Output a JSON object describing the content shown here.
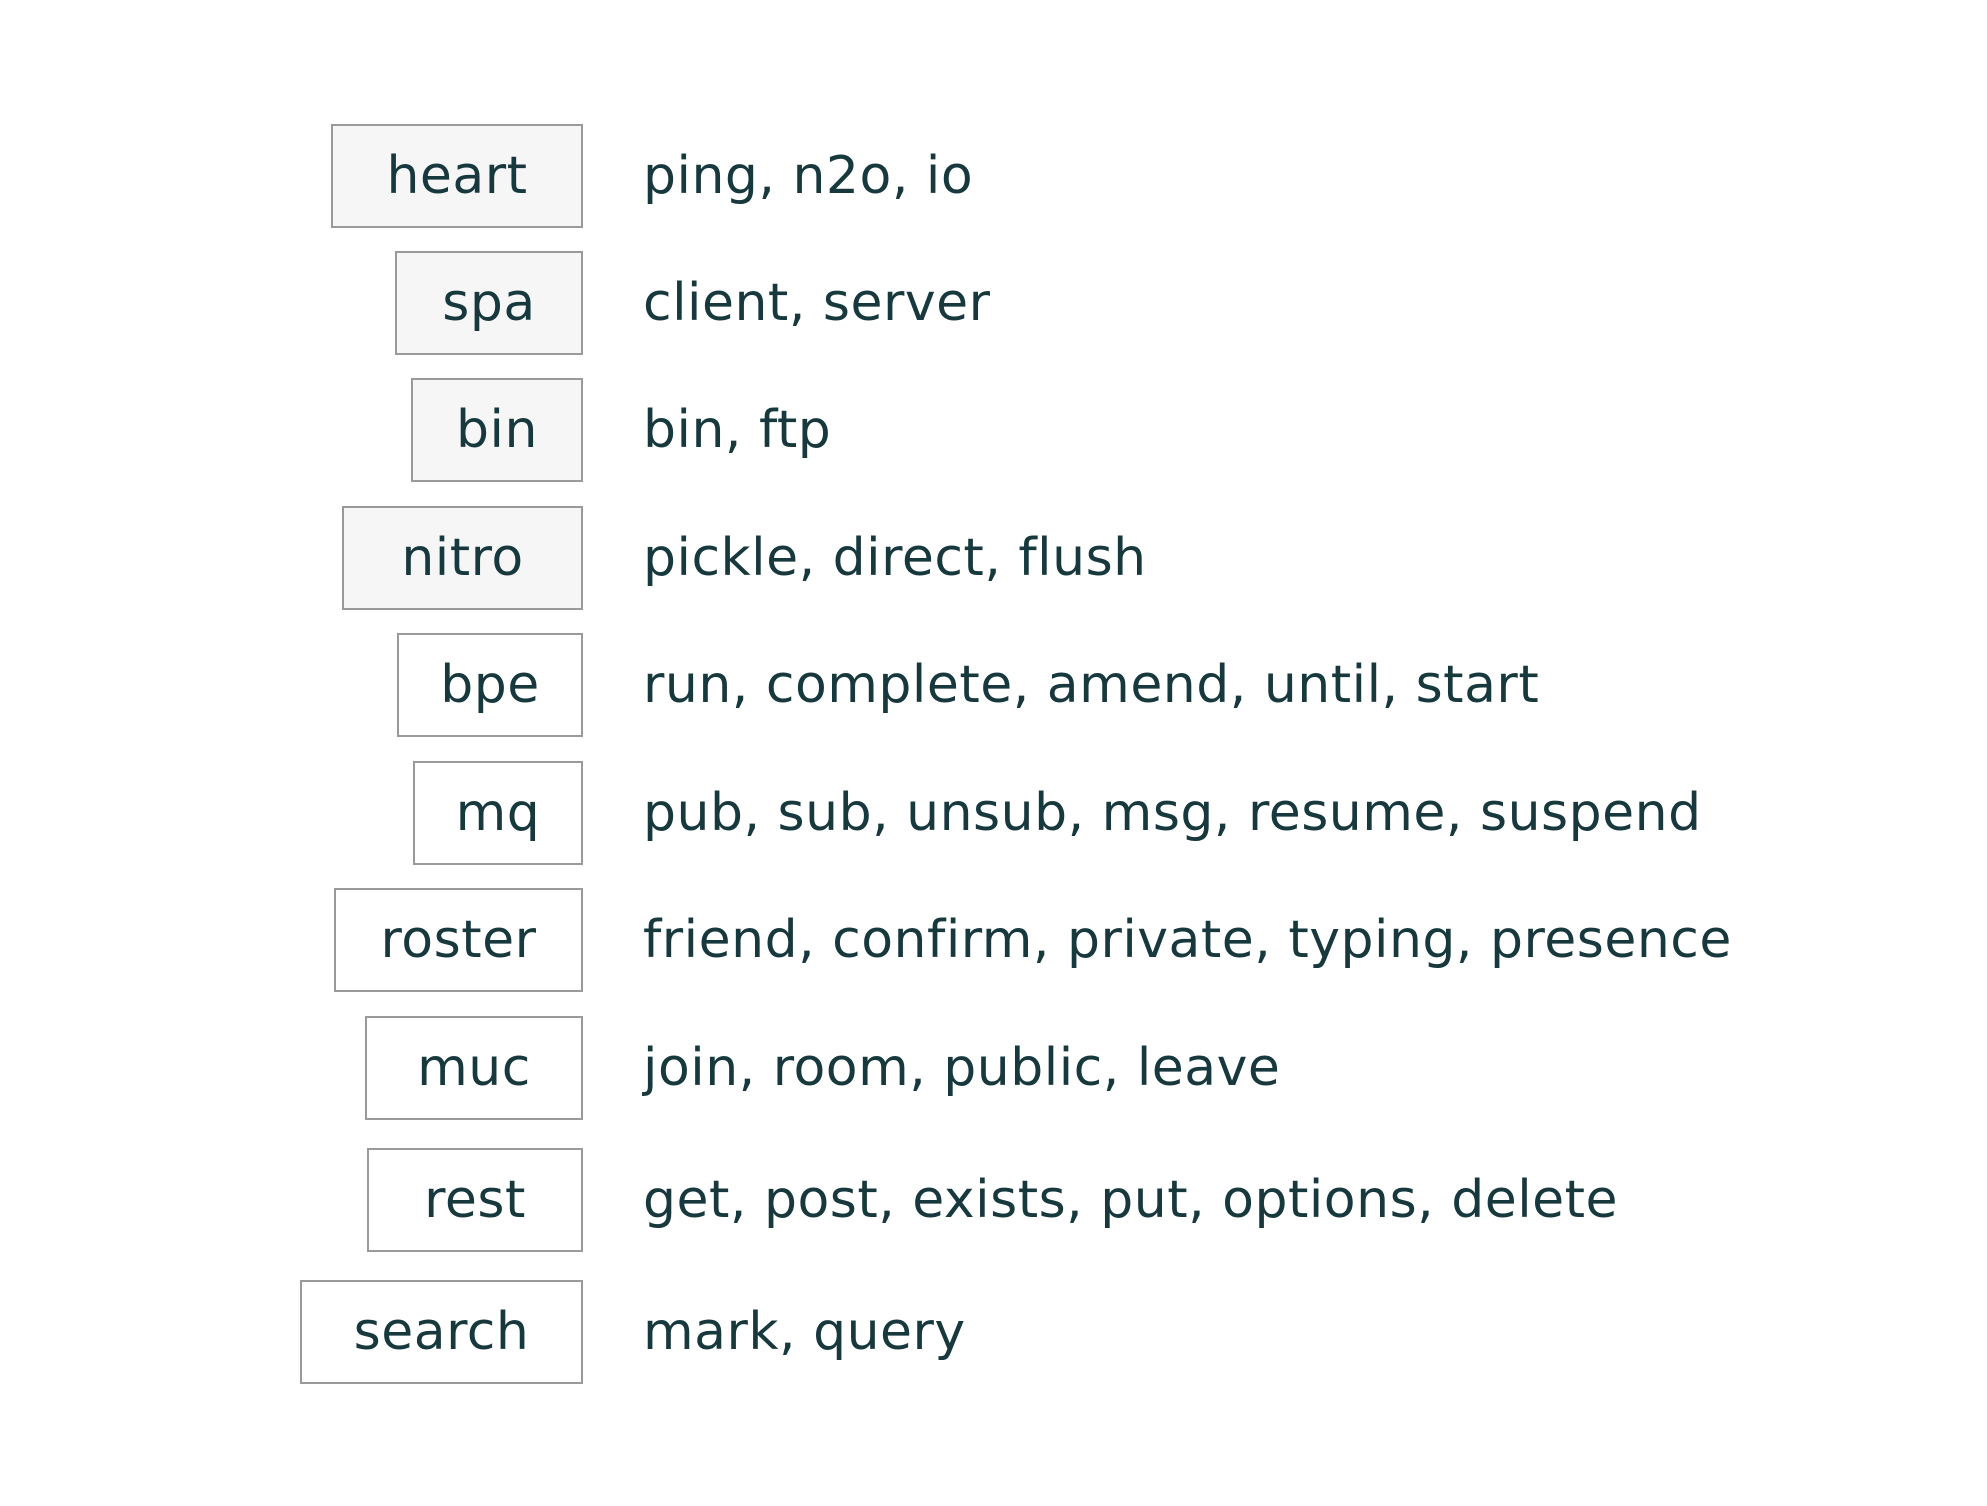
{
  "protocols": [
    {
      "name": "heart",
      "messages": "ping, n2o, io"
    },
    {
      "name": "spa",
      "messages": "client, server"
    },
    {
      "name": "bin",
      "messages": "bin, ftp"
    },
    {
      "name": "nitro",
      "messages": "pickle, direct, flush"
    },
    {
      "name": "bpe",
      "messages": "run, complete, amend, until, start"
    },
    {
      "name": "mq",
      "messages": "pub, sub, unsub, msg, resume, suspend"
    },
    {
      "name": "roster",
      "messages": "friend, confirm, private, typing, presence"
    },
    {
      "name": "muc",
      "messages": "join, room, public, leave"
    },
    {
      "name": "rest",
      "messages": "get, post, exists, put, options, delete"
    },
    {
      "name": "search",
      "messages": "mark, query"
    }
  ]
}
